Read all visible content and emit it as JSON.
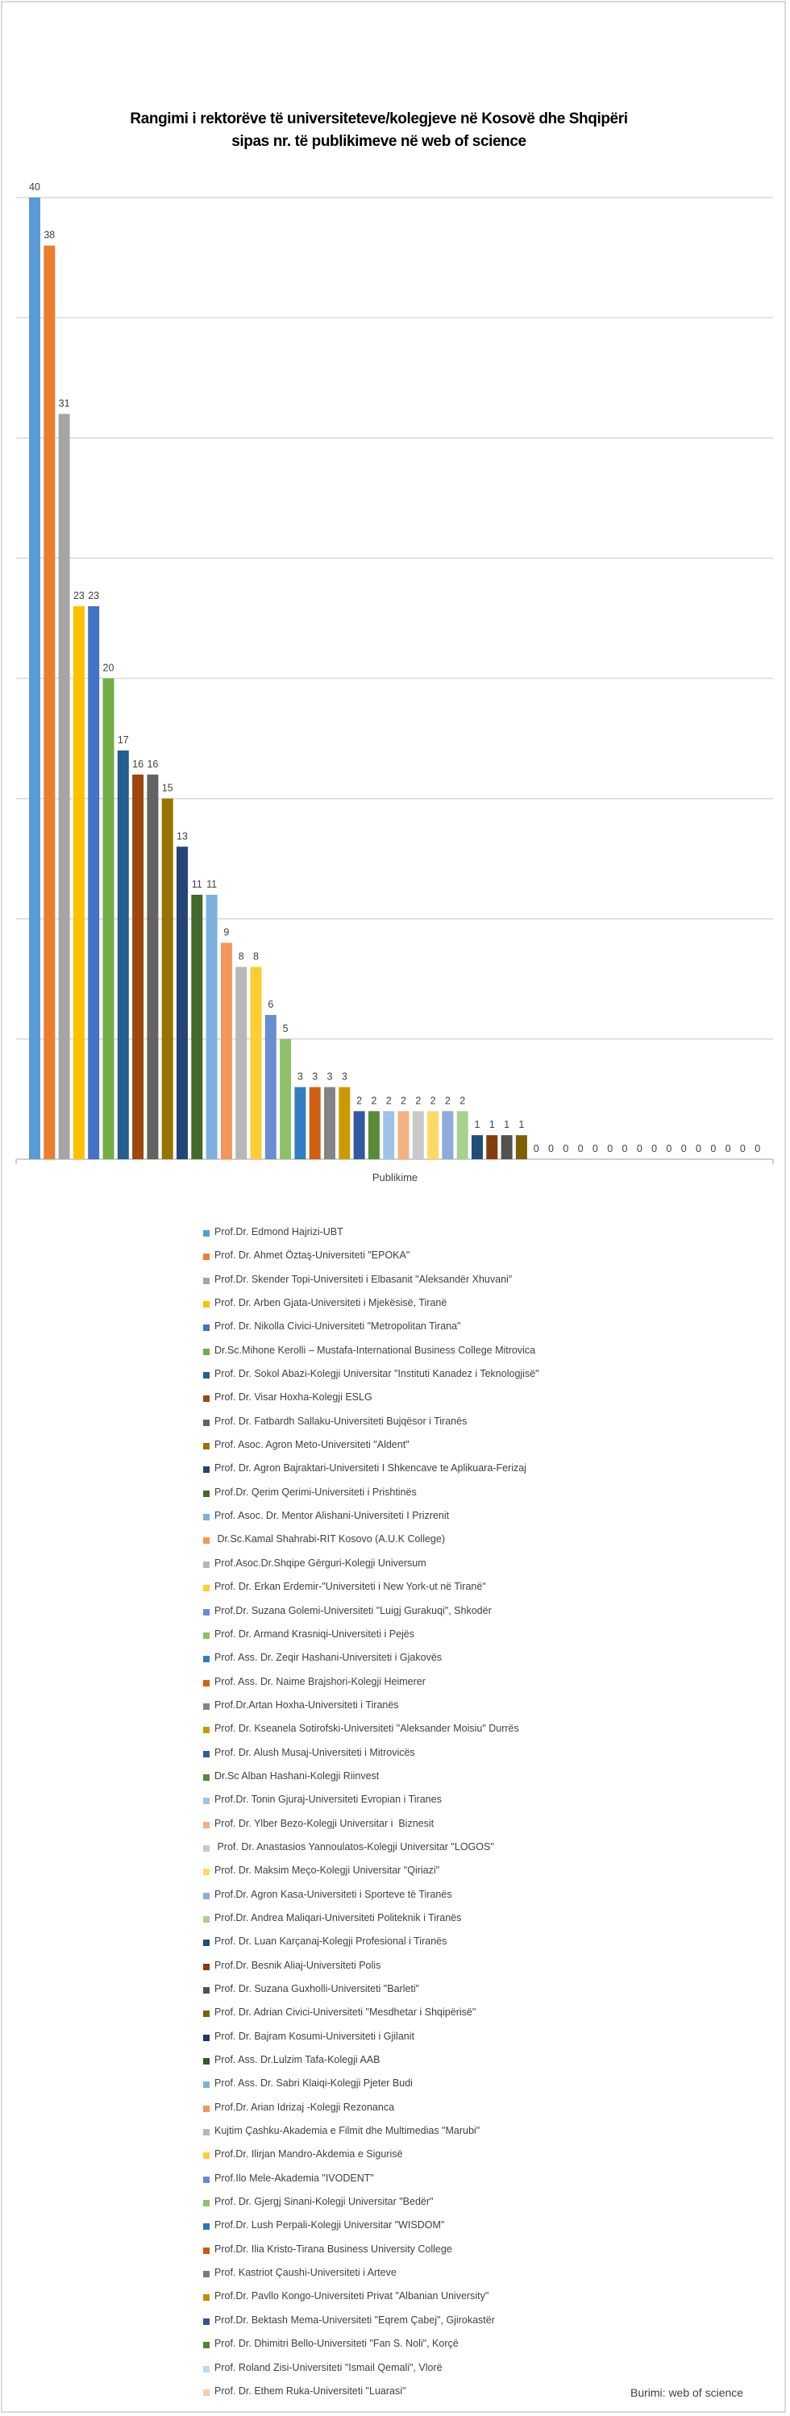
{
  "chart_data": {
    "type": "bar",
    "title": "Rangimi i rektorëve të universiteteve/kolegjeve në Kosovë dhe Shqipëri",
    "subtitle": "sipas nr. të publikimeve në web of science",
    "xlabel": "Publikime",
    "ylabel": "",
    "ylim": [
      0,
      40
    ],
    "grid_step": 5,
    "grid": true,
    "legend_placement": "bottom",
    "source": "Burimi: web of science",
    "series": [
      {
        "name": "Prof.Dr. Edmond Hajrizi-UBT",
        "value": 40,
        "color": "#5B9BD5"
      },
      {
        "name": "Prof. Dr. Ahmet Öztaş-Universiteti \"EPOKA\"",
        "value": 38,
        "color": "#ED7D31"
      },
      {
        "name": "Prof.Dr. Skender Topi-Universiteti i Elbasanit \"Aleksandër Xhuvani\"",
        "value": 31,
        "color": "#A5A5A5"
      },
      {
        "name": "Prof. Dr. Arben Gjata-Universiteti i Mjekësisë, Tiranë",
        "value": 23,
        "color": "#FFC000"
      },
      {
        "name": "Prof. Dr. Nikolla Civici-Universiteti \"Metropolitan Tirana\"",
        "value": 23,
        "color": "#4472C4"
      },
      {
        "name": "Dr.Sc.Mihone Kerolli – Mustafa-International Business College Mitrovica",
        "value": 20,
        "color": "#70AD47"
      },
      {
        "name": "Prof. Dr. Sokol Abazi-Kolegji Universitar \"Instituti Kanadez i Teknologjisë\"",
        "value": 17,
        "color": "#255E91"
      },
      {
        "name": "Prof. Dr. Visar Hoxha-Kolegji ESLG",
        "value": 16,
        "color": "#9E480E"
      },
      {
        "name": "Prof. Dr. Fatbardh Sallaku-Universiteti Bujqësor i Tiranës",
        "value": 16,
        "color": "#636363"
      },
      {
        "name": "Prof. Asoc. Agron Meto-Universiteti \"Aldent\"",
        "value": 15,
        "color": "#997300"
      },
      {
        "name": "Prof. Dr. Agron Bajraktari-Universiteti I Shkencave te Aplikuara-Ferizaj",
        "value": 13,
        "color": "#264478"
      },
      {
        "name": "Prof.Dr. Qerim Qerimi-Universiteti i Prishtinës",
        "value": 11,
        "color": "#43682B"
      },
      {
        "name": "Prof. Asoc. Dr. Mentor Alishani-Universiteti I Prizrenit",
        "value": 11,
        "color": "#7CAFDD"
      },
      {
        "name": " Dr.Sc.Kamal Shahrabi-RIT Kosovo (A.U.K College)",
        "value": 9,
        "color": "#F1975A"
      },
      {
        "name": "Prof.Asoc.Dr.Shqipe Gërguri-Kolegji Universum",
        "value": 8,
        "color": "#B7B7B7"
      },
      {
        "name": "Prof. Dr. Erkan Erdemir-\"Universiteti i New York-ut në Tiranë\"",
        "value": 8,
        "color": "#FFCD33"
      },
      {
        "name": "Prof.Dr. Suzana Golemi-Universiteti \"Luigj Gurakuqi\", Shkodër",
        "value": 6,
        "color": "#698ED0"
      },
      {
        "name": "Prof. Dr. Armand Krasniqi-Universiteti i Pejës",
        "value": 5,
        "color": "#8CC168"
      },
      {
        "name": "Prof. Ass. Dr. Zeqir Hashani-Universiteti i Gjakovës",
        "value": 3,
        "color": "#327DC2"
      },
      {
        "name": "Prof. Ass. Dr. Naime Brajshori-Kolegji Heimerer",
        "value": 3,
        "color": "#D26012"
      },
      {
        "name": "Prof.Dr.Artan Hoxha-Universiteti i Tiranës",
        "value": 3,
        "color": "#848484"
      },
      {
        "name": "Prof. Dr. Kseanela Sotirofski-Universiteti \"Aleksander Moisiu\" Durrës",
        "value": 3,
        "color": "#CC9A00"
      },
      {
        "name": "Prof. Dr. Alush Musaj-Universiteti i Mitrovicës",
        "value": 2,
        "color": "#335AA1"
      },
      {
        "name": "Dr.Sc Alban Hashani-Kolegji Riinvest",
        "value": 2,
        "color": "#5A8A39"
      },
      {
        "name": "Prof.Dr. Tonin Gjuraj-Universiteti Evropian i Tiranes",
        "value": 2,
        "color": "#9DC3E6"
      },
      {
        "name": "Prof. Dr. Ylber Bezo-Kolegji Universitar i  Biznesit",
        "value": 2,
        "color": "#F4B183"
      },
      {
        "name": " Prof. Dr. Anastasios Yannoulatos-Kolegji Universitar \"LOGOS\"",
        "value": 2,
        "color": "#C9C9C9"
      },
      {
        "name": "Prof. Dr. Maksim Meço-Kolegji Universitar \"Qiriazi\"",
        "value": 2,
        "color": "#FFD966"
      },
      {
        "name": "Prof.Dr. Agron Kasa-Universiteti i Sporteve të Tiranës",
        "value": 2,
        "color": "#8FAADC"
      },
      {
        "name": "Prof.Dr. Andrea Maliqari-Universiteti Politeknik i Tiranës",
        "value": 2,
        "color": "#A9D18E"
      },
      {
        "name": "Prof. Dr. Luan Karçanaj-Kolegji Profesional i Tiranës",
        "value": 1,
        "color": "#1F4E79"
      },
      {
        "name": "Prof.Dr. Besnik Aliaj-Universiteti Polis",
        "value": 1,
        "color": "#843C0C"
      },
      {
        "name": "Prof. Dr. Suzana Guxholli-Universiteti \"Barleti\"",
        "value": 1,
        "color": "#525252"
      },
      {
        "name": "Prof. Dr. Adrian Civici-Universiteti \"Mesdhetar i Shqipërisë\"",
        "value": 1,
        "color": "#7F6000"
      },
      {
        "name": "Prof. Dr. Bajram Kosumi-Universiteti i Gjilanit",
        "value": 0,
        "color": "#203864"
      },
      {
        "name": "Prof. Ass. Dr.Lulzim Tafa-Kolegji AAB",
        "value": 0,
        "color": "#385723"
      },
      {
        "name": "Prof. Ass. Dr. Sabri Klaiqi-Kolegji Pjeter Budi",
        "value": 0,
        "color": "#7CAFDD"
      },
      {
        "name": "Prof.Dr. Arian Idrizaj -Kolegji Rezonanca",
        "value": 0,
        "color": "#F1975A"
      },
      {
        "name": "Kujtim Çashku-Akademia e Filmit dhe Multimedias \"Marubi\"",
        "value": 0,
        "color": "#B7B7B7"
      },
      {
        "name": "Prof.Dr. Ilirjan Mandro-Akdemia e Sigurisë",
        "value": 0,
        "color": "#FFCD33"
      },
      {
        "name": "Prof.Ilo Mele-Akademia \"IVODENT\"",
        "value": 0,
        "color": "#698ED0"
      },
      {
        "name": "Prof. Dr. Gjergj Sinani-Kolegji Universitar \"Bedër\"",
        "value": 0,
        "color": "#8CC168"
      },
      {
        "name": "Prof.Dr. Lush Perpali-Kolegji Universitar \"WISDOM\"",
        "value": 0,
        "color": "#2E75B6"
      },
      {
        "name": "Prof.Dr. Ilia Kristo-Tirana Business University College",
        "value": 0,
        "color": "#C55A11"
      },
      {
        "name": "Prof. Kastriot Çaushi-Universiteti i Arteve",
        "value": 0,
        "color": "#7B7B7B"
      },
      {
        "name": "Prof.Dr. Pavllo Kongo-Universiteti Privat \"Albanian University\"",
        "value": 0,
        "color": "#BF9000"
      },
      {
        "name": "Prof.Dr. Bektash Mema-Universiteti \"Eqrem Çabej\", Gjirokastër",
        "value": 0,
        "color": "#2F5597"
      },
      {
        "name": "Prof. Dr. Dhimitri Bello-Universiteti \"Fan S. Noli\", Korçë",
        "value": 0,
        "color": "#548235"
      },
      {
        "name": "Prof. Roland Zisi-Universiteti \"Ismail Qemali\", Vlorë",
        "value": 0,
        "color": "#BDD7EE"
      },
      {
        "name": "Prof. Dr. Ethem Ruka-Universiteti \"Luarasi\"",
        "value": 0,
        "color": "#F8CBAD"
      }
    ]
  }
}
